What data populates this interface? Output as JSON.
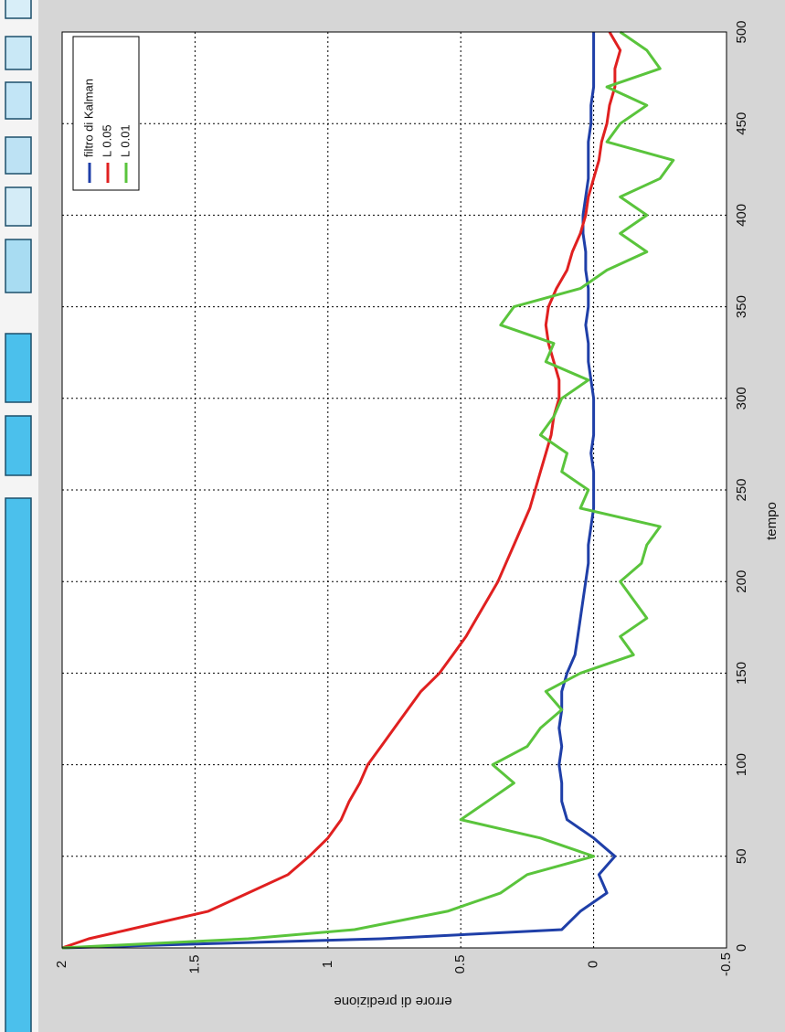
{
  "chart_data": {
    "type": "line",
    "xlabel": "tempo",
    "ylabel": "errore di predizione",
    "x": [
      0,
      5,
      10,
      20,
      30,
      40,
      50,
      60,
      70,
      80,
      90,
      100,
      110,
      120,
      130,
      140,
      150,
      160,
      170,
      180,
      190,
      200,
      210,
      220,
      230,
      240,
      250,
      260,
      270,
      280,
      290,
      300,
      310,
      320,
      330,
      340,
      350,
      360,
      370,
      380,
      390,
      400,
      410,
      420,
      430,
      440,
      450,
      460,
      470,
      480,
      490,
      500
    ],
    "series": [
      {
        "name": "filtro di Kalman",
        "color": "#1f3fa8",
        "values": [
          2,
          0.8,
          0.12,
          0.05,
          -0.05,
          -0.02,
          -0.08,
          0.0,
          0.1,
          0.12,
          0.12,
          0.13,
          0.12,
          0.13,
          0.12,
          0.12,
          0.1,
          0.07,
          0.06,
          0.05,
          0.04,
          0.03,
          0.02,
          0.02,
          0.01,
          0.0,
          0.0,
          0.0,
          0.01,
          0.0,
          0.0,
          0.0,
          0.01,
          0.02,
          0.02,
          0.03,
          0.02,
          0.02,
          0.03,
          0.03,
          0.04,
          0.04,
          0.03,
          0.02,
          0.02,
          0.02,
          0.01,
          0.01,
          0.0,
          0.0,
          0.0,
          0.0
        ]
      },
      {
        "name": "L 0.05",
        "color": "#e02020",
        "values": [
          2,
          1.9,
          1.75,
          1.45,
          1.3,
          1.15,
          1.07,
          1.0,
          0.95,
          0.92,
          0.88,
          0.85,
          0.8,
          0.75,
          0.7,
          0.65,
          0.58,
          0.53,
          0.48,
          0.44,
          0.4,
          0.36,
          0.33,
          0.3,
          0.27,
          0.24,
          0.22,
          0.2,
          0.18,
          0.16,
          0.15,
          0.13,
          0.13,
          0.15,
          0.17,
          0.18,
          0.17,
          0.14,
          0.1,
          0.08,
          0.05,
          0.03,
          0.02,
          0.0,
          -0.02,
          -0.03,
          -0.05,
          -0.06,
          -0.08,
          -0.08,
          -0.1,
          -0.06
        ]
      },
      {
        "name": "L 0.01",
        "color": "#5ac43c",
        "values": [
          2,
          1.3,
          0.9,
          0.55,
          0.35,
          0.25,
          0.0,
          0.2,
          0.5,
          0.4,
          0.3,
          0.38,
          0.25,
          0.2,
          0.12,
          0.18,
          0.05,
          -0.15,
          -0.1,
          -0.2,
          -0.15,
          -0.1,
          -0.18,
          -0.2,
          -0.25,
          0.05,
          0.02,
          0.12,
          0.1,
          0.2,
          0.15,
          0.12,
          0.02,
          0.18,
          0.15,
          0.35,
          0.3,
          0.05,
          -0.05,
          -0.2,
          -0.1,
          -0.2,
          -0.1,
          -0.25,
          -0.3,
          -0.05,
          -0.1,
          -0.2,
          -0.05,
          -0.25,
          -0.2,
          -0.1
        ]
      }
    ],
    "xlim": [
      0,
      500
    ],
    "xticks": [
      0,
      50,
      100,
      150,
      200,
      250,
      300,
      350,
      400,
      450,
      500
    ],
    "ylim": [
      -0.5,
      2
    ],
    "yticks": [
      2,
      1.5,
      1,
      0.5,
      0,
      -0.5
    ],
    "grid": true,
    "legend": "upper-left"
  }
}
